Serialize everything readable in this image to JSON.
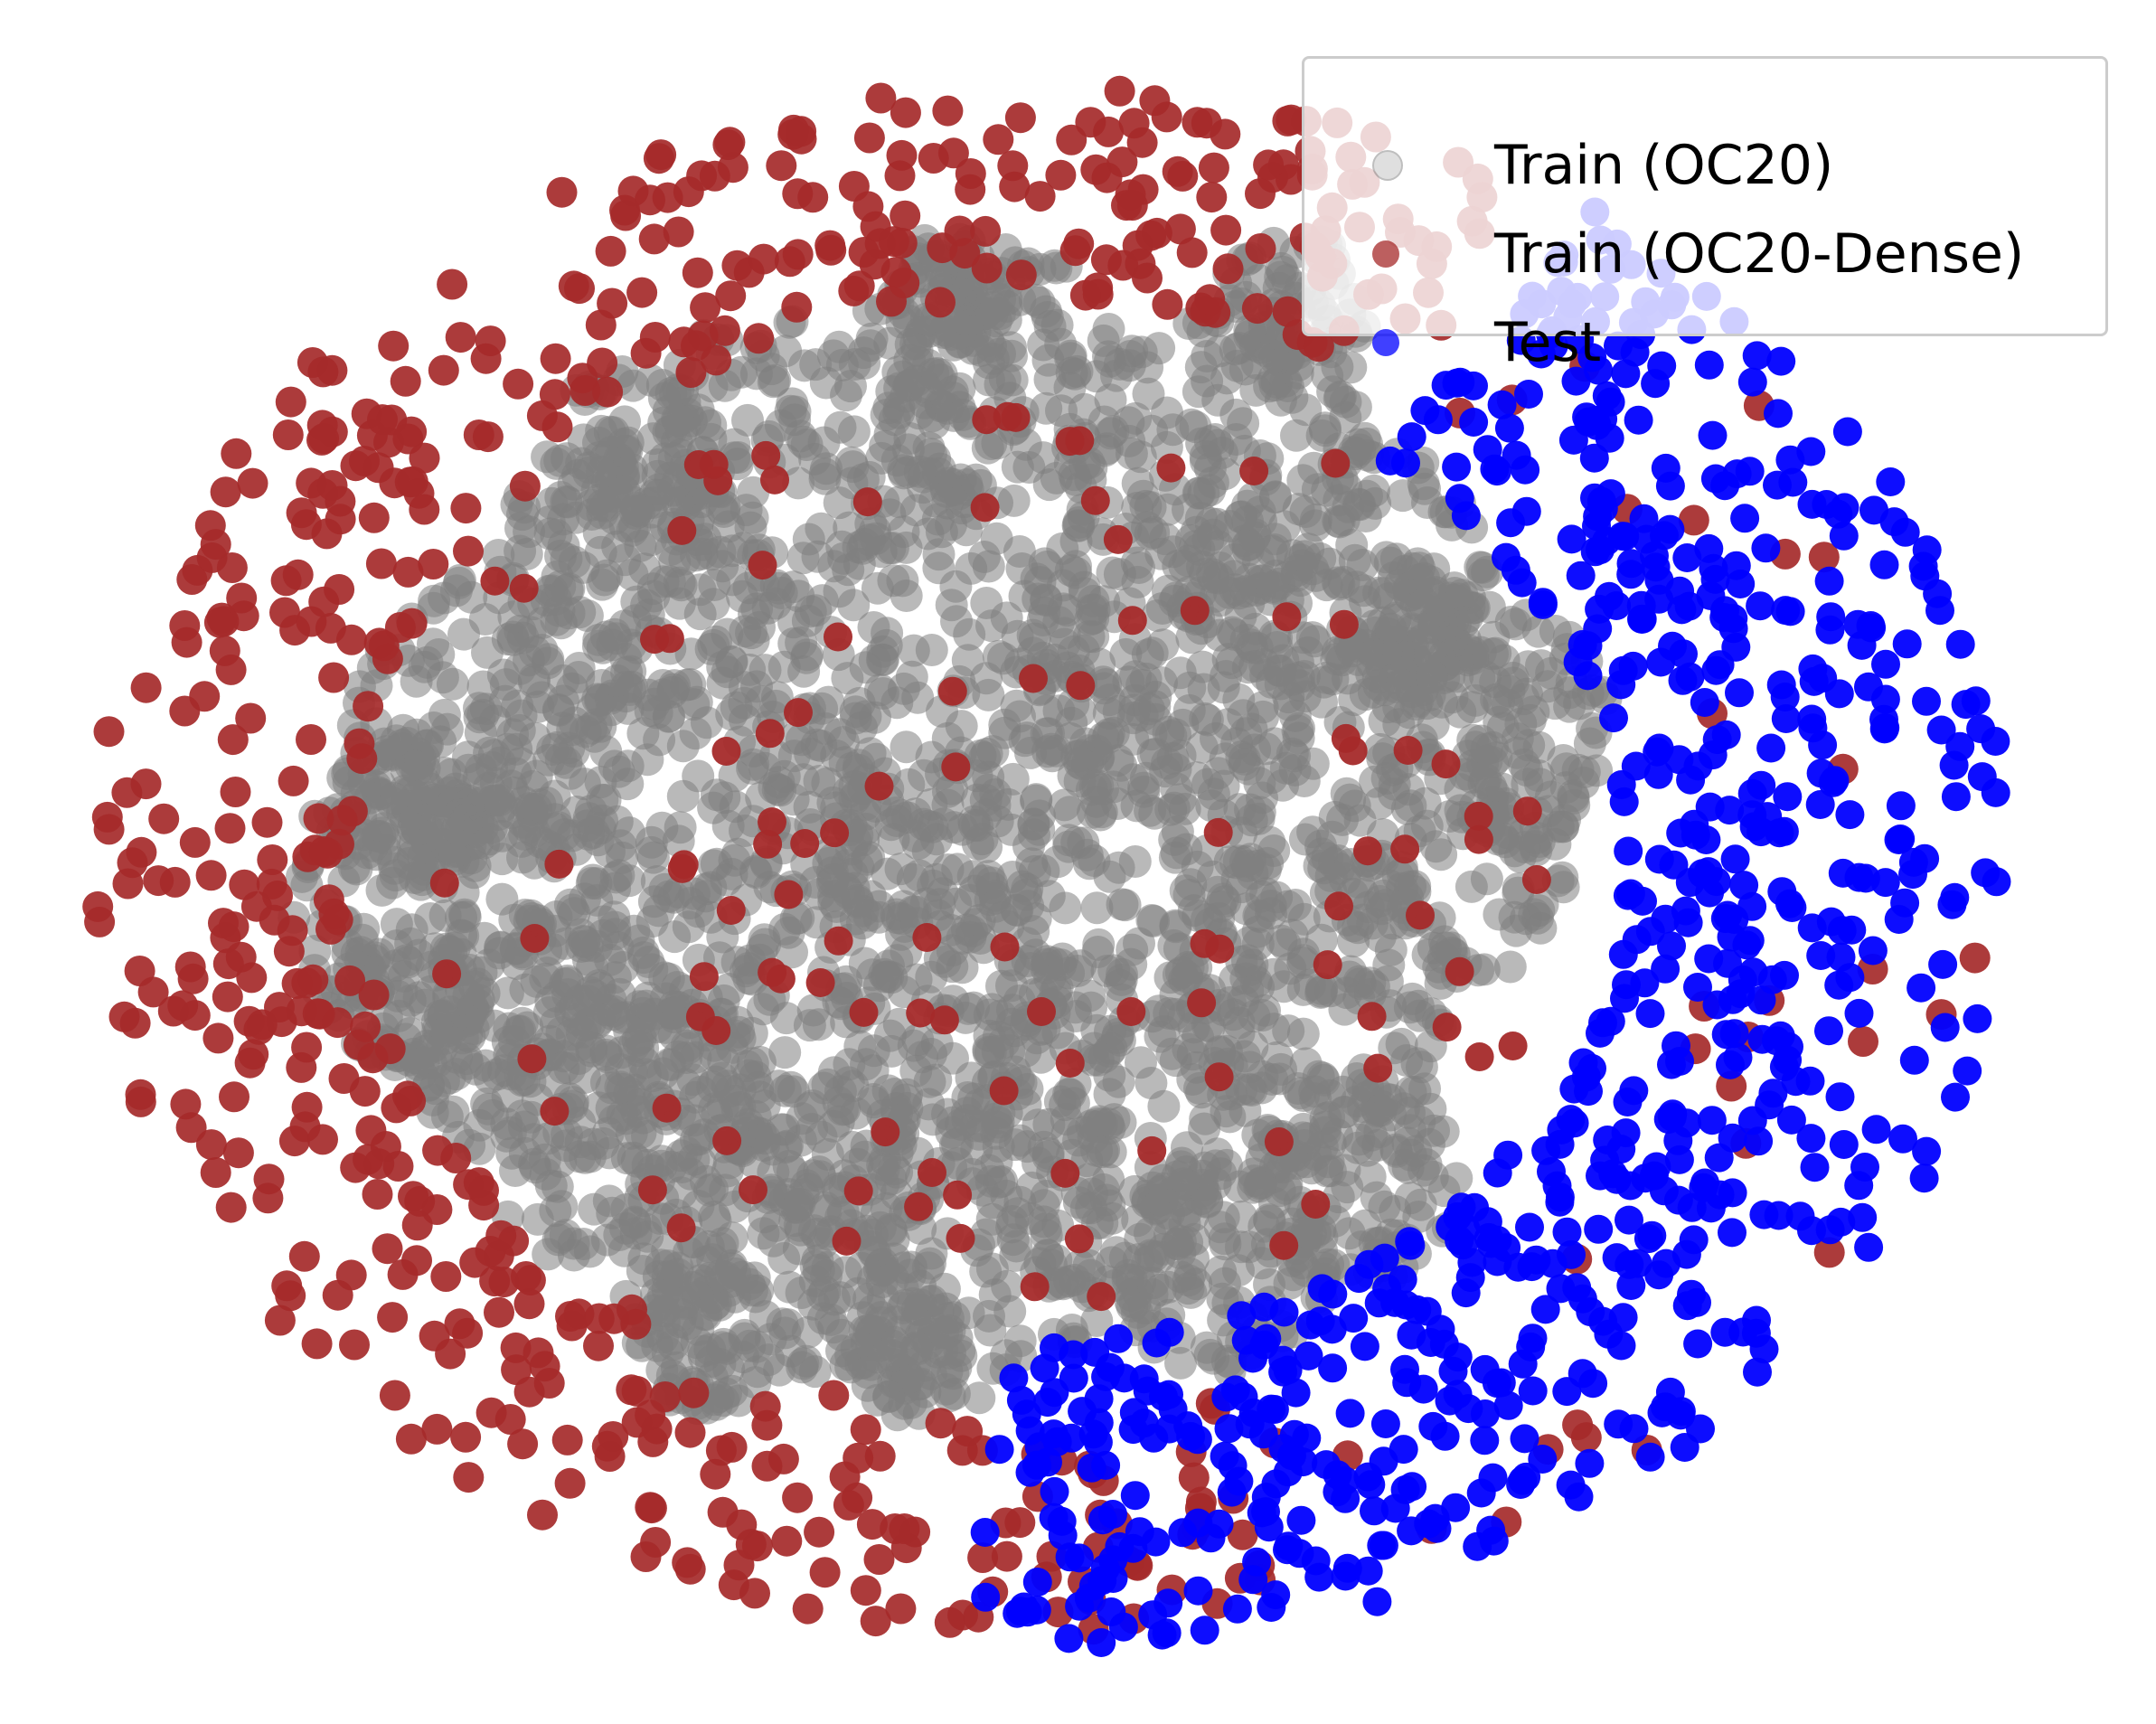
{
  "chart_data": {
    "type": "scatter",
    "title": "",
    "xlabel": "",
    "ylabel": "",
    "axes_visible": false,
    "grid": false,
    "legend_position": "top-right",
    "series": [
      {
        "name": "Train (OC20)",
        "color": "#808080",
        "alpha_legend": 0.25,
        "description_of_region": "dense core"
      },
      {
        "name": "Train (OC20-Dense)",
        "color": "#a52a2a"
      },
      {
        "name": "Test",
        "color": "#0000ff"
      }
    ]
  },
  "legend": {
    "items": [
      {
        "label": "Train (OC20)",
        "color": "#808080"
      },
      {
        "label": "Train (OC20-Dense)",
        "color": "#a52a2a"
      },
      {
        "label": "Test",
        "color": "#0000ff"
      }
    ]
  }
}
